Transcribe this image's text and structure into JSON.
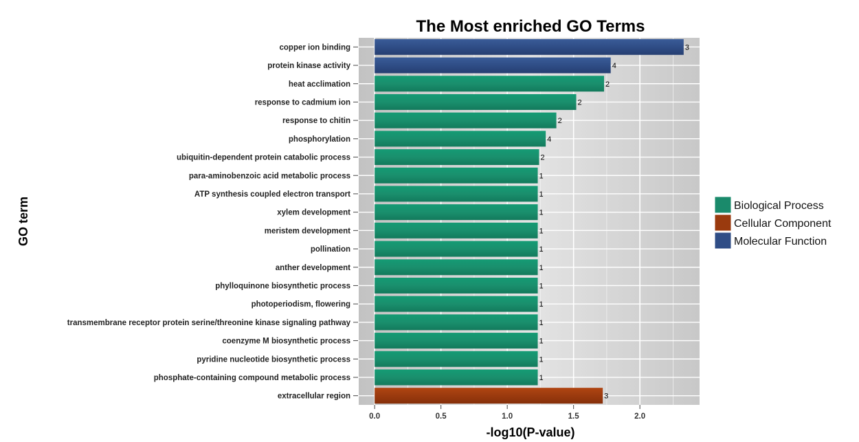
{
  "chart_data": {
    "type": "bar",
    "orientation": "horizontal",
    "title": "The Most enriched GO Terms",
    "xlabel": "-log10(P-value)",
    "ylabel": "GO term",
    "xlim": [
      -0.12,
      2.45
    ],
    "xticks": [
      0.0,
      0.5,
      1.0,
      1.5,
      2.0
    ],
    "xtick_labels": [
      "0.0",
      "0.5",
      "1.0",
      "1.5",
      "2.0"
    ],
    "grid": true,
    "legend_position": "right",
    "legend": [
      {
        "name": "Biological Process",
        "color": "#1a8a6b"
      },
      {
        "name": "Cellular Component",
        "color": "#9a3a0e"
      },
      {
        "name": "Molecular Function",
        "color": "#2f4d86"
      }
    ],
    "bars": [
      {
        "term": "copper ion binding",
        "value": 2.33,
        "count": "3",
        "category": "Molecular Function"
      },
      {
        "term": "protein kinase activity",
        "value": 1.78,
        "count": "4",
        "category": "Molecular Function"
      },
      {
        "term": "heat acclimation",
        "value": 1.73,
        "count": "2",
        "category": "Biological Process"
      },
      {
        "term": "response to cadmium ion",
        "value": 1.52,
        "count": "2",
        "category": "Biological Process"
      },
      {
        "term": "response to chitin",
        "value": 1.37,
        "count": "2",
        "category": "Biological Process"
      },
      {
        "term": "phosphorylation",
        "value": 1.29,
        "count": "4",
        "category": "Biological Process"
      },
      {
        "term": "ubiquitin-dependent protein catabolic process",
        "value": 1.24,
        "count": "2",
        "category": "Biological Process"
      },
      {
        "term": "para-aminobenzoic acid metabolic process",
        "value": 1.23,
        "count": "1",
        "category": "Biological Process"
      },
      {
        "term": "ATP synthesis coupled electron transport",
        "value": 1.23,
        "count": "1",
        "category": "Biological Process"
      },
      {
        "term": "xylem development",
        "value": 1.23,
        "count": "1",
        "category": "Biological Process"
      },
      {
        "term": "meristem development",
        "value": 1.23,
        "count": "1",
        "category": "Biological Process"
      },
      {
        "term": "pollination",
        "value": 1.23,
        "count": "1",
        "category": "Biological Process"
      },
      {
        "term": "anther development",
        "value": 1.23,
        "count": "1",
        "category": "Biological Process"
      },
      {
        "term": "phylloquinone biosynthetic process",
        "value": 1.23,
        "count": "1",
        "category": "Biological Process"
      },
      {
        "term": "photoperiodism, flowering",
        "value": 1.23,
        "count": "1",
        "category": "Biological Process"
      },
      {
        "term": "transmembrane receptor protein serine/threonine kinase signaling pathway",
        "value": 1.23,
        "count": "1",
        "category": "Biological Process"
      },
      {
        "term": "coenzyme M biosynthetic process",
        "value": 1.23,
        "count": "1",
        "category": "Biological Process"
      },
      {
        "term": "pyridine nucleotide biosynthetic process",
        "value": 1.23,
        "count": "1",
        "category": "Biological Process"
      },
      {
        "term": "phosphate-containing compound metabolic process",
        "value": 1.23,
        "count": "1",
        "category": "Biological Process"
      },
      {
        "term": "extracellular region",
        "value": 1.72,
        "count": "3",
        "category": "Cellular Component"
      }
    ]
  }
}
